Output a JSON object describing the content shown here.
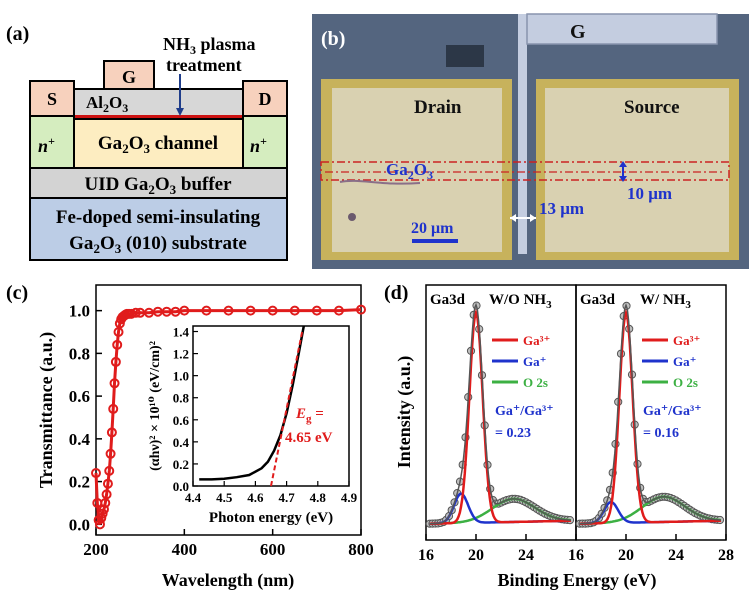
{
  "panels": {
    "a": {
      "label": "(a)",
      "gate": "G",
      "source": "S",
      "drain": "D",
      "oxide": "Al",
      "oxide_sub": "2",
      "oxide_tail": "O",
      "oxide_sub2": "3",
      "plasma_line1": "NH",
      "plasma_sub": "3",
      "plasma_line1_tail": " plasma",
      "plasma_line2": "treatment",
      "nplus": "n",
      "nplus_sup": "+",
      "channel": "Ga",
      "channel_sub": "2",
      "channel_mid": "O",
      "channel_sub2": "3",
      "channel_tail": " channel",
      "buffer": "UID Ga",
      "buffer_sub": "2",
      "buffer_mid": "O",
      "buffer_sub2": "3",
      "buffer_tail": " buffer",
      "substrate_line1": "Fe-doped semi-insulating",
      "substrate_line2": "Ga",
      "substrate_sub": "2",
      "substrate_mid": "O",
      "substrate_sub2": "3",
      "substrate_tail": " (010) substrate",
      "colors": {
        "contact": "#f7d1bd",
        "oxide": "#d7d7d7",
        "nplus": "#d5edbf",
        "channel": "#fdedc1",
        "buffer": "#d3d3d3",
        "substrate": "#bccde6",
        "plasma": "#cc1111"
      }
    },
    "b": {
      "label": "(b)",
      "gate": "G",
      "drain": "Drain",
      "source": "Source",
      "channel": "Ga",
      "channel_sub": "2",
      "channel_tail": "O",
      "channel_sub2": "3",
      "gap": "13 μm",
      "width": "10 μm",
      "scale": "20 μm",
      "colors": {
        "background": "#54657f",
        "pad": "#d9d1b1",
        "border": "#c7b25c",
        "text_blue": "#1f33cc",
        "dash": "#cc2222"
      }
    },
    "c": {
      "label": "(c)",
      "chart_data": {
        "type": "scatter",
        "xlabel": "Wavelength (nm)",
        "ylabel": "Transmittance (a.u.)",
        "xlim": [
          200,
          800
        ],
        "ylim": [
          -0.05,
          1.12
        ],
        "xticks": [
          200,
          400,
          600,
          800
        ],
        "yticks": [
          "0.0",
          "0.2",
          "0.4",
          "0.6",
          "0.8",
          "1.0"
        ],
        "yticks_values": [
          0.0,
          0.2,
          0.4,
          0.6,
          0.8,
          1.0
        ],
        "x": [
          200,
          203,
          206,
          209,
          212,
          215,
          218,
          221,
          224,
          227,
          230,
          233,
          236,
          239,
          242,
          245,
          248,
          251,
          254,
          257,
          260,
          263,
          266,
          270,
          275,
          280,
          290,
          300,
          320,
          340,
          360,
          380,
          400,
          450,
          500,
          550,
          600,
          650,
          700,
          750,
          800
        ],
        "y": [
          0.24,
          0.1,
          0.02,
          0.0,
          0.03,
          0.05,
          0.07,
          0.1,
          0.14,
          0.19,
          0.25,
          0.33,
          0.43,
          0.54,
          0.66,
          0.76,
          0.84,
          0.9,
          0.94,
          0.96,
          0.97,
          0.975,
          0.98,
          0.985,
          0.985,
          0.985,
          0.99,
          0.99,
          0.99,
          0.995,
          0.995,
          0.995,
          1.0,
          1.0,
          1.0,
          1.0,
          1.0,
          1.0,
          1.0,
          1.0,
          1.005
        ],
        "marker_color": "#e01c1c",
        "inset": {
          "type": "line",
          "xlabel": "Photon energy (eV)",
          "ylabel": "(αhν)² × 10¹⁰ (eV/cm)²",
          "xlim": [
            4.4,
            4.9
          ],
          "ylim": [
            0.0,
            1.45
          ],
          "xticks": [
            "4.4",
            "4.5",
            "4.6",
            "4.7",
            "4.8",
            "4.9"
          ],
          "xticks_values": [
            4.4,
            4.5,
            4.6,
            4.7,
            4.8,
            4.9
          ],
          "yticks": [
            "0.0",
            "0.2",
            "0.4",
            "0.6",
            "0.8",
            "1.0",
            "1.2",
            "1.4"
          ],
          "yticks_values": [
            0.0,
            0.2,
            0.4,
            0.6,
            0.8,
            1.0,
            1.2,
            1.4
          ],
          "x": [
            4.42,
            4.46,
            4.5,
            4.54,
            4.58,
            4.62,
            4.64,
            4.66,
            4.68,
            4.7,
            4.72,
            4.74,
            4.755
          ],
          "y": [
            0.06,
            0.06,
            0.065,
            0.08,
            0.1,
            0.16,
            0.22,
            0.32,
            0.46,
            0.66,
            0.92,
            1.22,
            1.45
          ],
          "fit_x": [
            4.65,
            4.75
          ],
          "fit_y": [
            0.0,
            1.4
          ],
          "annotation_label": "E",
          "annotation_sub": "g",
          "annotation_eq": " =",
          "annotation_value": "4.65 eV",
          "line_color": "#000000",
          "fit_color": "#e01c1c"
        }
      }
    },
    "d": {
      "label": "(d)",
      "chart_data": {
        "type": "line",
        "xlabel": "Binding Energy (eV)",
        "ylabel": "Intensity (a.u.)",
        "xticks_left": [
          "16",
          "20",
          "24"
        ],
        "xticks_right": [
          "16",
          "20",
          "24",
          "28"
        ],
        "xlim": [
          16,
          28
        ],
        "series_names": [
          "Ga³⁺",
          "Ga⁺",
          "O 2s"
        ],
        "series_colors": [
          "#e01c1c",
          "#1f33cc",
          "#3cb043"
        ],
        "subplots": [
          {
            "core": "Ga3d",
            "title": "W/O NH",
            "title_sub": "3",
            "ratio_label": "Ga⁺/Ga³⁺",
            "ratio_value": "= 0.23",
            "ga3_center": 20.0,
            "ga3_height": 1.0,
            "ga1_center": 18.8,
            "ga1_height": 0.14,
            "o2s_center": 23.0,
            "o2s_height": 0.11
          },
          {
            "core": "Ga3d",
            "title": "W/ NH",
            "title_sub": "3",
            "ratio_label": "Ga⁺/Ga³⁺",
            "ratio_value": "= 0.16",
            "ga3_center": 20.0,
            "ga3_height": 1.0,
            "ga1_center": 18.8,
            "ga1_height": 0.1,
            "o2s_center": 23.0,
            "o2s_height": 0.12
          }
        ]
      }
    }
  }
}
